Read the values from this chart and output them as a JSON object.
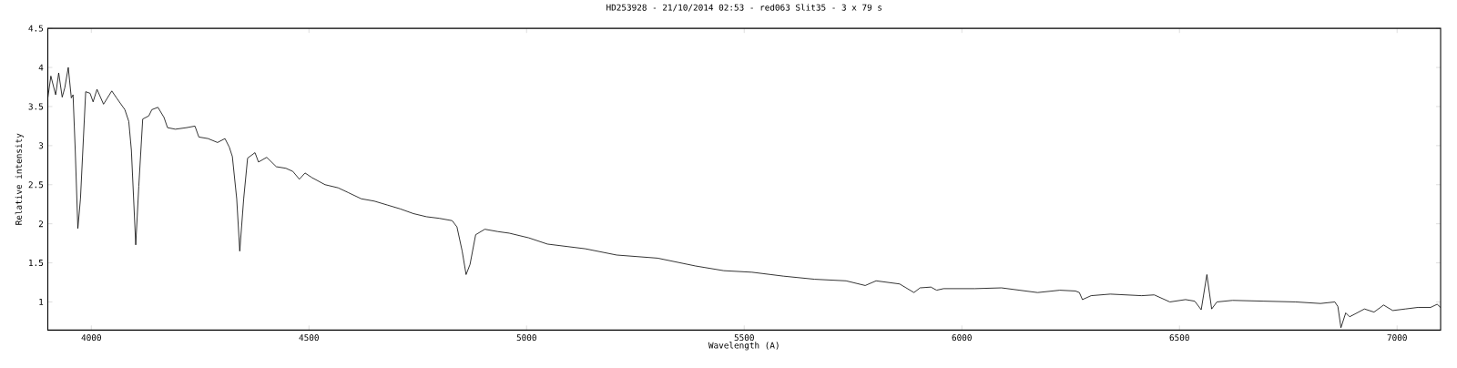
{
  "chart_data": {
    "type": "line",
    "title": "HD253928 - 21/10/2014 02:53 - red063 Slit35 - 3 x 79 s",
    "xlabel": "Wavelength (A)",
    "ylabel": "Relative intensity",
    "xlim": [
      3900,
      7100
    ],
    "ylim": [
      0.64,
      4.5
    ],
    "xticks": [
      4000,
      4500,
      5000,
      5500,
      6000,
      6500,
      7000
    ],
    "yticks": [
      1,
      1.5,
      2,
      2.5,
      3,
      3.5,
      4,
      4.5
    ],
    "grid": false,
    "line_style": "solid",
    "series": [
      {
        "color": "#000000",
        "x": [
          3900,
          3907,
          3918,
          3925,
          3933,
          3939,
          3947,
          3954,
          3958,
          3963,
          3969,
          3975,
          3987,
          3997,
          4004,
          4013,
          4028,
          4047,
          4058,
          4077,
          4086,
          4092,
          4102,
          4109,
          4118,
          4132,
          4139,
          4153,
          4167,
          4175,
          4193,
          4219,
          4238,
          4247,
          4268,
          4290,
          4307,
          4317,
          4324,
          4334,
          4341,
          4350,
          4359,
          4376,
          4384,
          4403,
          4425,
          4447,
          4463,
          4478,
          4491,
          4507,
          4537,
          4567,
          4590,
          4620,
          4650,
          4680,
          4710,
          4740,
          4770,
          4799,
          4829,
          4840,
          4852,
          4861,
          4870,
          4883,
          4904,
          4934,
          4960,
          5005,
          5048,
          5135,
          5207,
          5301,
          5388,
          5453,
          5518,
          5590,
          5662,
          5734,
          5778,
          5803,
          5857,
          5890,
          5904,
          5929,
          5942,
          5958,
          6030,
          6091,
          6174,
          6225,
          6261,
          6270,
          6277,
          6297,
          6341,
          6413,
          6442,
          6478,
          6514,
          6535,
          6550,
          6563,
          6574,
          6586,
          6622,
          6694,
          6767,
          6824,
          6857,
          6864,
          6871,
          6882,
          6891,
          6925,
          6947,
          6969,
          6990,
          7019,
          7048,
          7077,
          7092,
          7100
        ],
        "values": [
          3.61,
          3.89,
          3.65,
          3.93,
          3.62,
          3.74,
          4.0,
          3.61,
          3.65,
          2.94,
          1.94,
          2.32,
          3.69,
          3.67,
          3.56,
          3.72,
          3.53,
          3.7,
          3.61,
          3.46,
          3.31,
          2.94,
          1.73,
          2.48,
          3.34,
          3.38,
          3.46,
          3.49,
          3.36,
          3.23,
          3.21,
          3.23,
          3.25,
          3.11,
          3.09,
          3.04,
          3.09,
          2.98,
          2.86,
          2.32,
          1.65,
          2.32,
          2.84,
          2.91,
          2.79,
          2.85,
          2.73,
          2.71,
          2.67,
          2.57,
          2.65,
          2.59,
          2.5,
          2.46,
          2.4,
          2.32,
          2.29,
          2.24,
          2.19,
          2.13,
          2.09,
          2.07,
          2.04,
          1.96,
          1.65,
          1.35,
          1.48,
          1.86,
          1.93,
          1.9,
          1.88,
          1.82,
          1.74,
          1.68,
          1.6,
          1.56,
          1.46,
          1.4,
          1.38,
          1.33,
          1.29,
          1.27,
          1.21,
          1.27,
          1.23,
          1.12,
          1.18,
          1.19,
          1.15,
          1.17,
          1.17,
          1.18,
          1.12,
          1.15,
          1.14,
          1.12,
          1.03,
          1.08,
          1.1,
          1.08,
          1.09,
          1.0,
          1.03,
          1.01,
          0.9,
          1.35,
          0.91,
          1.0,
          1.02,
          1.01,
          1.0,
          0.98,
          1.0,
          0.94,
          0.67,
          0.86,
          0.81,
          0.91,
          0.87,
          0.96,
          0.89,
          0.91,
          0.93,
          0.93,
          0.97,
          0.93
        ]
      }
    ]
  }
}
